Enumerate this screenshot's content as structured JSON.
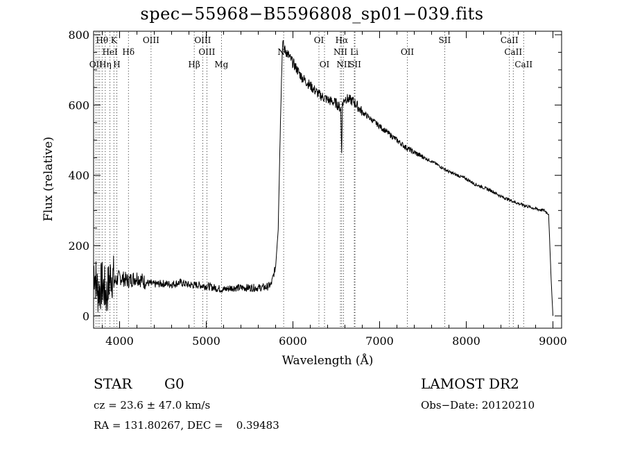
{
  "chart_data": {
    "type": "line",
    "title": "spec−55968−B5596808_sp01−039.fits",
    "xlabel": "Wavelength (Å)",
    "ylabel": "Flux (relative)",
    "xlim": [
      3700,
      9100
    ],
    "ylim": [
      -35,
      810
    ],
    "xticks": [
      4000,
      5000,
      6000,
      7000,
      8000,
      9000
    ],
    "yticks": [
      0,
      200,
      400,
      600,
      800
    ],
    "grid": false,
    "series": [
      {
        "x": [
          3700,
          3750,
          3800,
          3850,
          3900,
          3950,
          4000,
          4100,
          4200,
          4300,
          4400,
          4500,
          4600,
          4700,
          4800,
          4900,
          5000,
          5100,
          5200,
          5300,
          5400,
          5500,
          5600,
          5700,
          5750,
          5800,
          5830,
          5860,
          5880,
          5890,
          5900,
          5950,
          6000,
          6050,
          6100,
          6200,
          6300,
          6400,
          6500,
          6550,
          6562,
          6570,
          6600,
          6700,
          6800,
          6900,
          7000,
          7100,
          7200,
          7300,
          7400,
          7500,
          7600,
          7700,
          7800,
          7900,
          8000,
          8100,
          8200,
          8300,
          8400,
          8500,
          8600,
          8700,
          8800,
          8850,
          8900,
          8950,
          8980,
          9000
        ],
        "y": [
          140,
          70,
          90,
          60,
          120,
          100,
          110,
          100,
          110,
          95,
          90,
          92,
          90,
          95,
          88,
          88,
          85,
          80,
          75,
          80,
          80,
          80,
          80,
          82,
          90,
          140,
          250,
          600,
          780,
          770,
          760,
          740,
          720,
          700,
          680,
          655,
          630,
          615,
          605,
          590,
          470,
          600,
          620,
          610,
          580,
          560,
          540,
          520,
          500,
          480,
          465,
          452,
          440,
          425,
          410,
          400,
          390,
          375,
          365,
          355,
          340,
          330,
          320,
          312,
          305,
          302,
          300,
          290,
          100,
          0
        ]
      }
    ],
    "line_labels": [
      {
        "label": "Hθ",
        "x": 3798,
        "row": 1
      },
      {
        "label": "K",
        "x": 3934,
        "row": 1
      },
      {
        "label": "HeI",
        "x": 3889,
        "row": 2
      },
      {
        "label": "Hδ",
        "x": 4102,
        "row": 2
      },
      {
        "label": "OII",
        "x": 3727,
        "row": 3
      },
      {
        "label": "Hη",
        "x": 3835,
        "row": 3
      },
      {
        "label": "H",
        "x": 3968,
        "row": 3
      },
      {
        "label": "OIII",
        "x": 4363,
        "row": 1
      },
      {
        "label": "OIII",
        "x": 4959,
        "row": 1
      },
      {
        "label": "OIII",
        "x": 5007,
        "row": 2
      },
      {
        "label": "Hβ",
        "x": 4861,
        "row": 3
      },
      {
        "label": "Mg",
        "x": 5175,
        "row": 3
      },
      {
        "label": "Na",
        "x": 5893,
        "row": 2
      },
      {
        "label": "OI",
        "x": 6300,
        "row": 1
      },
      {
        "label": "OI",
        "x": 6364,
        "row": 3
      },
      {
        "label": "Hα",
        "x": 6563,
        "row": 1
      },
      {
        "label": "NII",
        "x": 6548,
        "row": 2
      },
      {
        "label": "Li",
        "x": 6708,
        "row": 2
      },
      {
        "label": "NII",
        "x": 6583,
        "row": 3
      },
      {
        "label": "SII",
        "x": 6716,
        "row": 3
      },
      {
        "label": "OII",
        "x": 7320,
        "row": 2
      },
      {
        "label": "SII",
        "x": 7751,
        "row": 1
      },
      {
        "label": "CaII",
        "x": 8498,
        "row": 1
      },
      {
        "label": "CaII",
        "x": 8542,
        "row": 2
      },
      {
        "label": "CaII",
        "x": 8662,
        "row": 3
      }
    ],
    "line_markers": [
      3727,
      3750,
      3770,
      3798,
      3835,
      3889,
      3934,
      3968,
      4102,
      4363,
      4861,
      4959,
      5007,
      5175,
      5893,
      6300,
      6364,
      6548,
      6563,
      6583,
      6708,
      6716,
      7320,
      7751,
      8498,
      8542,
      8662
    ]
  },
  "info": {
    "object_class": "STAR",
    "subclass": "G0",
    "survey": "LAMOST DR2",
    "velocity": "cz = 23.6 ± 47.0 km/s",
    "obs_date": "Obs−Date: 20120210",
    "coords": "RA = 131.80267, DEC =    0.39483"
  }
}
